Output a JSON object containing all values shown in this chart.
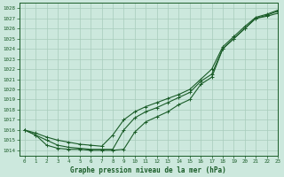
{
  "title": "Graphe pression niveau de la mer (hPa)",
  "bg_color": "#cce8dd",
  "grid_color": "#a8ccbb",
  "line_color": "#1a5c28",
  "xlim": [
    -0.5,
    23
  ],
  "ylim": [
    1013.5,
    1028.5
  ],
  "xticks": [
    0,
    1,
    2,
    3,
    4,
    5,
    6,
    7,
    8,
    9,
    10,
    11,
    12,
    13,
    14,
    15,
    16,
    17,
    18,
    19,
    20,
    21,
    22,
    23
  ],
  "yticks": [
    1014,
    1015,
    1016,
    1017,
    1018,
    1019,
    1020,
    1021,
    1022,
    1023,
    1024,
    1025,
    1026,
    1027,
    1028
  ],
  "series1_x": [
    0,
    1,
    2,
    3,
    4,
    5,
    6,
    7,
    8,
    9,
    10,
    11,
    12,
    13,
    14,
    15,
    16,
    17,
    18,
    19,
    20,
    21,
    22,
    23
  ],
  "series1_y": [
    1016.0,
    1015.5,
    1015.0,
    1014.5,
    1014.3,
    1014.2,
    1014.1,
    1014.1,
    1014.1,
    1016.0,
    1017.2,
    1017.8,
    1018.2,
    1018.7,
    1019.2,
    1019.7,
    1020.8,
    1021.5,
    1024.0,
    1025.0,
    1026.0,
    1027.0,
    1027.2,
    1027.5
  ],
  "series2_x": [
    0,
    1,
    2,
    3,
    4,
    5,
    6,
    7,
    8,
    9,
    10,
    11,
    12,
    13,
    14,
    15,
    16,
    17,
    18,
    19,
    20,
    21,
    22,
    23
  ],
  "series2_y": [
    1016.0,
    1015.7,
    1015.3,
    1015.0,
    1014.8,
    1014.6,
    1014.5,
    1014.4,
    1015.5,
    1017.0,
    1017.8,
    1018.3,
    1018.7,
    1019.1,
    1019.5,
    1020.0,
    1021.0,
    1022.0,
    1024.2,
    1025.2,
    1026.2,
    1027.1,
    1027.4,
    1027.8
  ],
  "series3_x": [
    0,
    1,
    2,
    3,
    4,
    5,
    6,
    7,
    8,
    9,
    10,
    11,
    12,
    13,
    14,
    15,
    16,
    17,
    18,
    19,
    20,
    21,
    22,
    23
  ],
  "series3_y": [
    1016.0,
    1015.5,
    1014.5,
    1014.2,
    1014.1,
    1014.1,
    1014.0,
    1014.0,
    1014.0,
    1014.1,
    1015.8,
    1016.8,
    1017.3,
    1017.8,
    1018.5,
    1019.0,
    1020.5,
    1021.2,
    1024.0,
    1025.0,
    1026.0,
    1027.0,
    1027.3,
    1027.7
  ]
}
